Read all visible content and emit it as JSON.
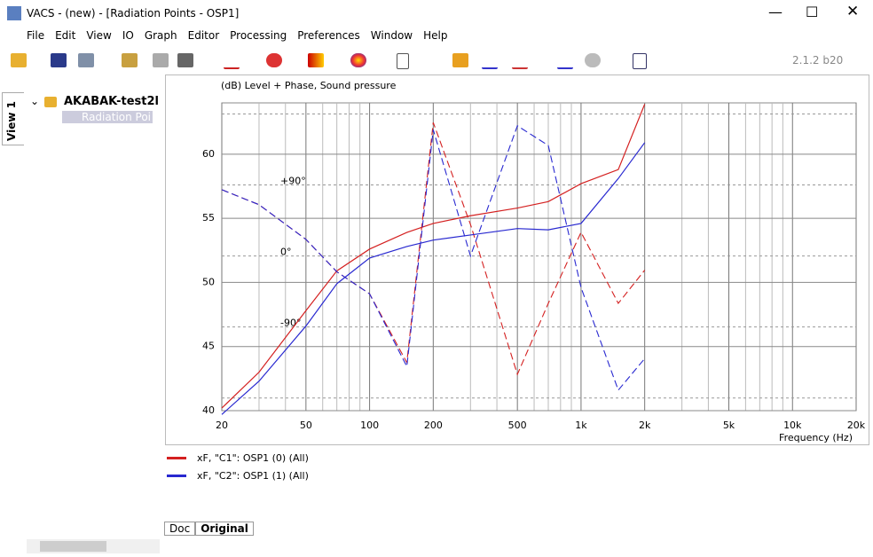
{
  "window": {
    "title": "VACS - (new) - [Radiation Points - OSP1]",
    "version": "2.1.2 b20"
  },
  "menu": [
    "File",
    "Edit",
    "View",
    "IO",
    "Graph",
    "Editor",
    "Processing",
    "Preferences",
    "Window",
    "Help"
  ],
  "view_tab": "View 1",
  "tree": {
    "root": "AKABAK-test2l",
    "child": "Radiation Poi"
  },
  "tabs": [
    "Doc",
    "Original"
  ],
  "chart_data": {
    "type": "line",
    "title": "(dB)  Level + Phase, Sound pressure",
    "x_label": "Frequency  (Hz)",
    "log_x": true,
    "grid": true,
    "x": [
      20,
      30,
      50,
      70,
      100,
      150,
      200,
      300,
      500,
      700,
      1000,
      1500,
      2000
    ],
    "xlim": [
      20,
      20000
    ],
    "xticks": [
      20,
      50,
      100,
      200,
      500,
      {
        "value": 1000,
        "label": "1k"
      },
      {
        "value": 2000,
        "label": "2k"
      },
      {
        "value": 5000,
        "label": "5k"
      },
      {
        "value": 10000,
        "label": "10k"
      },
      {
        "value": 20000,
        "label": "20k"
      }
    ],
    "xminor_ticks": [
      30,
      40,
      60,
      70,
      80,
      90,
      300,
      400,
      600,
      700,
      800,
      900,
      3000,
      4000,
      6000,
      7000,
      8000,
      9000
    ],
    "ylim": [
      40,
      64
    ],
    "yticks": [
      40,
      45,
      50,
      55,
      60
    ],
    "y2lim": [
      -196,
      194
    ],
    "y2ticks": [
      {
        "value": 90,
        "label": "+90°"
      },
      {
        "value": 0,
        "label": "0°"
      },
      {
        "value": -90,
        "label": "-90°"
      }
    ],
    "y2minor_ticks": [
      180,
      -180
    ],
    "series": [
      {
        "name": "xF, \"C1\": OSP1 (0)  (All)",
        "color": "#d42020",
        "values": [
          40.2,
          43,
          47.8,
          50.9,
          52.6,
          53.9,
          54.6,
          55.2,
          55.8,
          56.3,
          57.7,
          58.8,
          63.9
        ],
        "phase": [
          84,
          65,
          21,
          -20,
          -48,
          -135,
          169,
          40,
          -150,
          -60,
          30,
          -60,
          -18
        ]
      },
      {
        "name": "xF, \"C2\": OSP1 (1)  (All)",
        "color": "#2828d0",
        "values": [
          39.7,
          42.3,
          46.6,
          49.9,
          51.9,
          52.8,
          53.3,
          53.7,
          54.2,
          54.1,
          54.6,
          58.1,
          60.9
        ],
        "phase": [
          84,
          65,
          21,
          -20,
          -48,
          -140,
          160,
          0,
          165,
          140,
          -40,
          -170,
          -130
        ]
      }
    ]
  }
}
